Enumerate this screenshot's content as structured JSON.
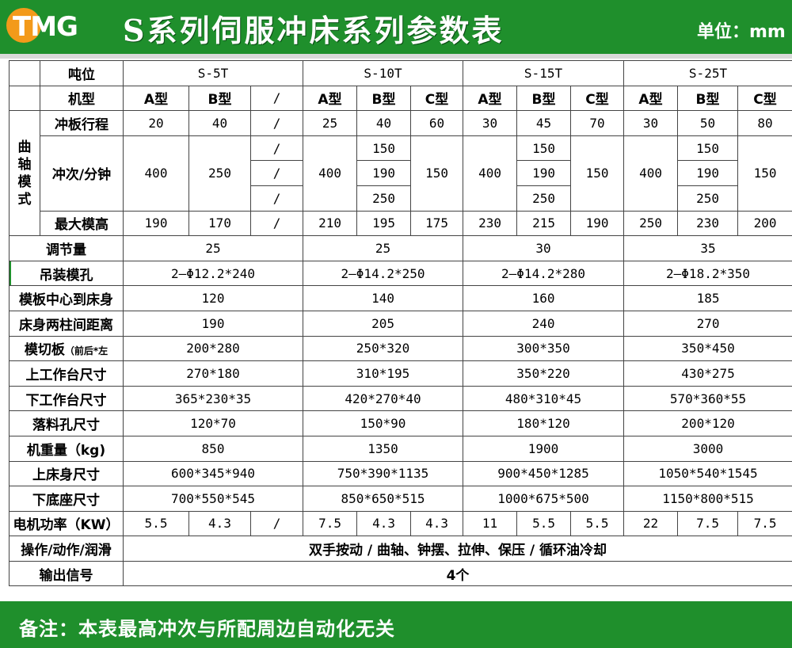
{
  "header": {
    "logo_text": "TMG",
    "title": "S系列伺服冲床系列参数表",
    "unit": "单位：mm"
  },
  "table": {
    "row_tonnage": {
      "label": "吨位",
      "models": [
        "S-5T",
        "S-10T",
        "S-15T",
        "S-25T"
      ]
    },
    "row_type": {
      "label": "机型",
      "values": [
        "A型",
        "B型",
        "/",
        "A型",
        "B型",
        "C型",
        "A型",
        "B型",
        "C型",
        "A型",
        "B型",
        "C型"
      ]
    },
    "crank_group_label": "曲轴模式",
    "row_stroke": {
      "label": "冲板行程",
      "values": [
        "20",
        "40",
        "/",
        "25",
        "40",
        "60",
        "30",
        "45",
        "70",
        "30",
        "50",
        "80"
      ]
    },
    "row_spm": {
      "label": "冲次/分钟",
      "s5_a": "400",
      "s5_b": "250",
      "s5_c": [
        "/",
        "/",
        "/"
      ],
      "s10_a": "400",
      "s10_b": [
        "150",
        "190",
        "250"
      ],
      "s10_c": "150",
      "s15_a": "400",
      "s15_b": [
        "150",
        "190",
        "250"
      ],
      "s15_c": "150",
      "s25_a": "400",
      "s25_b": [
        "150",
        "190",
        "250"
      ],
      "s25_c": "150"
    },
    "row_max_die_height": {
      "label": "最大模高",
      "values": [
        "190",
        "170",
        "/",
        "210",
        "195",
        "175",
        "230",
        "215",
        "190",
        "250",
        "230",
        "200"
      ]
    },
    "merged_rows": [
      {
        "label": "调节量",
        "values": [
          "25",
          "25",
          "30",
          "35"
        ]
      },
      {
        "label": "吊装模孔",
        "values": [
          "2—Φ12.2*240",
          "2—Φ14.2*250",
          "2—Φ14.2*280",
          "2—Φ18.2*350"
        ]
      },
      {
        "label": "模板中心到床身",
        "values": [
          "120",
          "140",
          "160",
          "185"
        ]
      },
      {
        "label": "床身两柱间距离",
        "values": [
          "190",
          "205",
          "240",
          "270"
        ]
      },
      {
        "label": "模切板",
        "label_small": "（前后*左",
        "values": [
          "200*280",
          "250*320",
          "300*350",
          "350*450"
        ]
      },
      {
        "label": "上工作台尺寸",
        "values": [
          "270*180",
          "310*195",
          "350*220",
          "430*275"
        ]
      },
      {
        "label": "下工作台尺寸",
        "values": [
          "365*230*35",
          "420*270*40",
          "480*310*45",
          "570*360*55"
        ]
      },
      {
        "label": "落料孔尺寸",
        "values": [
          "120*70",
          "150*90",
          "180*120",
          "200*120"
        ]
      },
      {
        "label": "机重量（kg)",
        "values": [
          "850",
          "1350",
          "1900",
          "3000"
        ]
      },
      {
        "label": "上床身尺寸",
        "values": [
          "600*345*940",
          "750*390*1135",
          "900*450*1285",
          "1050*540*1545"
        ]
      },
      {
        "label": "下底座尺寸",
        "values": [
          "700*550*545",
          "850*650*515",
          "1000*675*500",
          "1150*800*515"
        ]
      }
    ],
    "row_motor": {
      "label": "电机功率（KW）",
      "values": [
        "5.5",
        "4.3",
        "/",
        "7.5",
        "4.3",
        "4.3",
        "11",
        "5.5",
        "5.5",
        "22",
        "7.5",
        "7.5"
      ]
    },
    "row_operation": {
      "label": "操作/动作/润滑",
      "value": "双手按动 / 曲轴、钟摆、拉伸、保压 / 循环油冷却"
    },
    "row_output": {
      "label": "输出信号",
      "value": "4个"
    }
  },
  "footer": {
    "note": "备注：本表最高冲次与所配周边自动化无关"
  },
  "colors": {
    "brand_green": "#1f8f2c",
    "logo_orange": "#f39a1a"
  }
}
